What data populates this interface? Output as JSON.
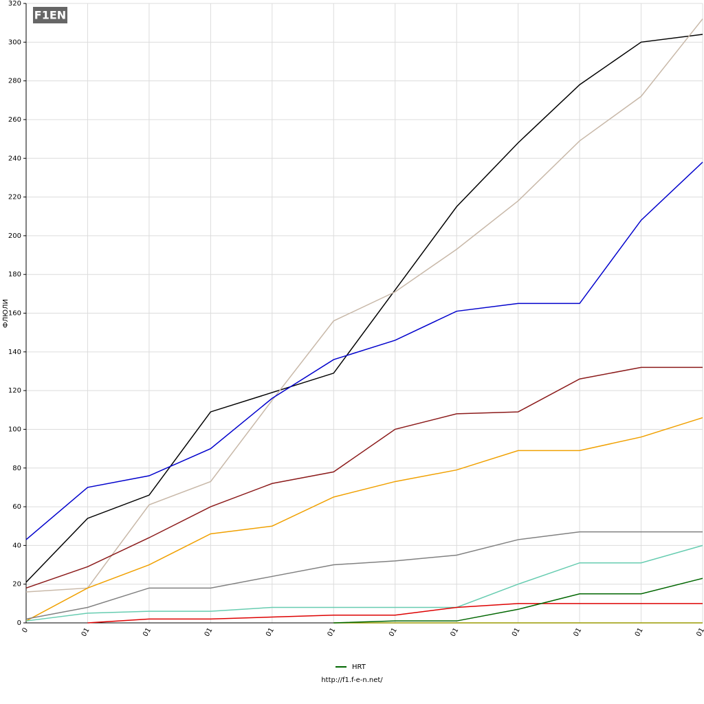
{
  "chart_data": {
    "type": "line",
    "logo": "F1EN",
    "ylabel": "ФЛЮЛИ",
    "footer": "http://f1.f-e-n.net/",
    "categories": [
      "0",
      "01",
      "01",
      "01",
      "01",
      "01",
      "01",
      "01",
      "01",
      "01",
      "01",
      "01"
    ],
    "ylim": [
      0,
      320
    ],
    "yticks": [
      0,
      20,
      40,
      60,
      80,
      100,
      120,
      140,
      160,
      180,
      200,
      220,
      240,
      260,
      280,
      300,
      320
    ],
    "grid": true,
    "series": [
      {
        "color": "#000000",
        "values": [
          21,
          54,
          66,
          109,
          119,
          129,
          172,
          215,
          248,
          278,
          300,
          304
        ]
      },
      {
        "color": "#c8b8a8",
        "values": [
          16,
          18,
          61,
          73,
          115,
          156,
          171,
          193,
          218,
          249,
          272,
          312
        ]
      },
      {
        "color": "#0000cc",
        "values": [
          43,
          70,
          76,
          90,
          116,
          136,
          146,
          161,
          165,
          165,
          208,
          238
        ]
      },
      {
        "color": "#8b1a1a",
        "values": [
          18,
          29,
          44,
          60,
          72,
          78,
          100,
          108,
          109,
          126,
          132,
          132
        ]
      },
      {
        "color": "#f0a000",
        "values": [
          1,
          18,
          30,
          46,
          50,
          65,
          73,
          79,
          89,
          89,
          96,
          106
        ]
      },
      {
        "color": "#808080",
        "values": [
          2,
          8,
          18,
          18,
          24,
          30,
          32,
          35,
          43,
          47,
          47,
          47
        ]
      },
      {
        "color": "#66ccb0",
        "values": [
          1,
          5,
          6,
          6,
          8,
          8,
          8,
          8,
          20,
          31,
          31,
          40
        ]
      },
      {
        "color": "#dd0000",
        "values": [
          null,
          0,
          2,
          2,
          3,
          4,
          4,
          8,
          10,
          10,
          10,
          10
        ]
      },
      {
        "color": "#999900",
        "values": [
          null,
          null,
          null,
          null,
          null,
          0,
          0,
          0,
          0,
          0,
          0,
          0
        ]
      },
      {
        "name": "HRT",
        "color": "#006600",
        "values": [
          null,
          null,
          null,
          null,
          null,
          0,
          1,
          1,
          7,
          15,
          15,
          23
        ]
      }
    ]
  }
}
